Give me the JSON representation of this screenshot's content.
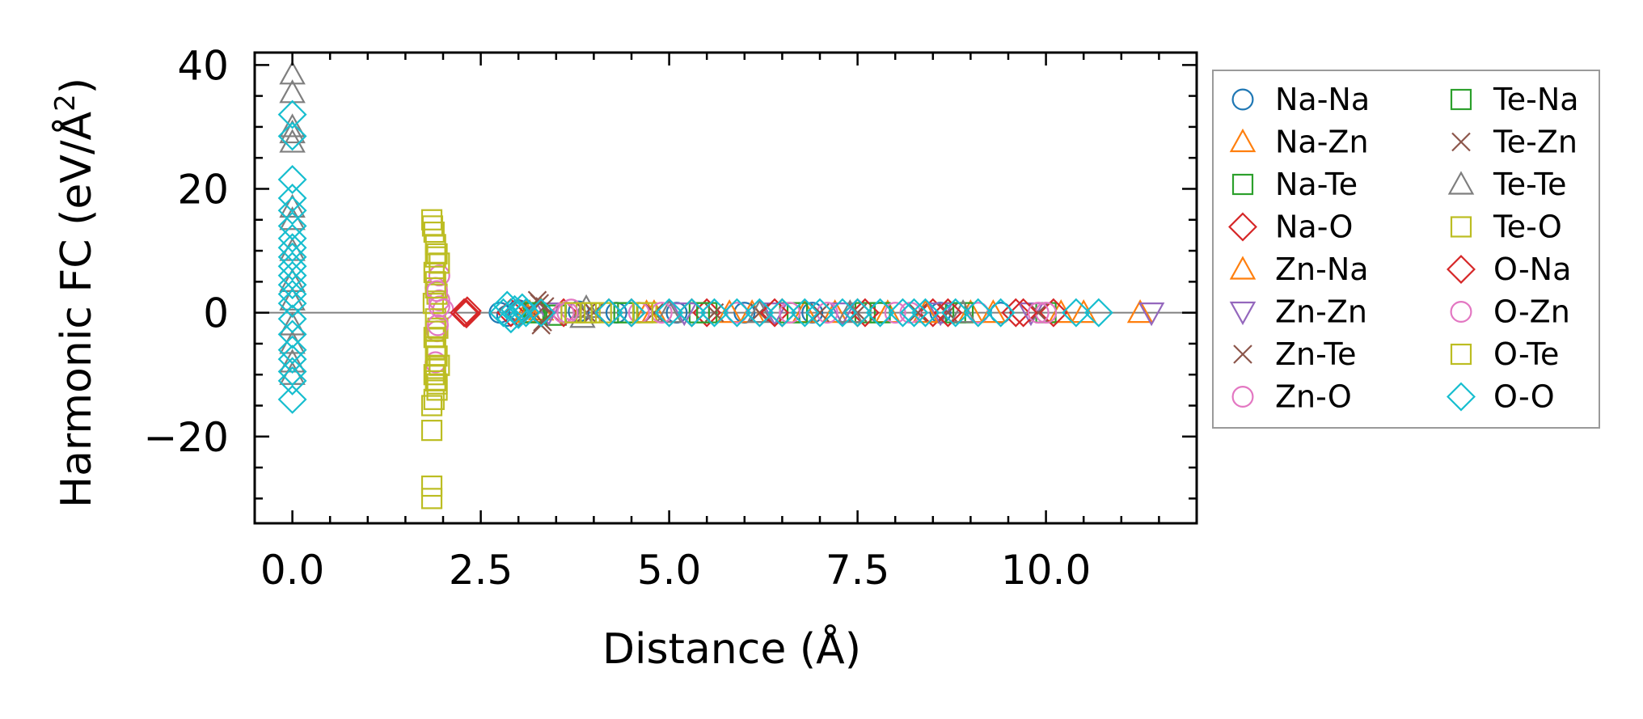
{
  "chart_data": {
    "type": "scatter",
    "title": "",
    "xlabel": "Distance (Å)",
    "ylabel_main": "Harmonic FC (eV/Å",
    "ylabel_sup": "2",
    "ylabel_close": ")",
    "xlim": [
      -0.5,
      12.0
    ],
    "ylim": [
      -34,
      42
    ],
    "xticks": [
      0.0,
      2.5,
      5.0,
      7.5,
      10.0
    ],
    "xtick_labels": [
      "0.0",
      "2.5",
      "5.0",
      "7.5",
      "10.0"
    ],
    "yticks": [
      -20,
      0,
      20,
      40
    ],
    "ytick_labels": [
      "−20",
      "0",
      "20",
      "40"
    ],
    "zero_line": 0,
    "legend": {
      "placement": "outside-right",
      "columns": 2
    },
    "series": [
      {
        "name": "Na-Na",
        "marker": "circle",
        "color": "#1f77b4",
        "points": [
          [
            2.75,
            0
          ],
          [
            2.85,
            -0.5
          ],
          [
            3.0,
            0.4
          ],
          [
            3.3,
            0
          ],
          [
            3.8,
            0.2
          ],
          [
            4.3,
            0
          ],
          [
            5.1,
            0
          ],
          [
            6.0,
            0
          ],
          [
            6.9,
            0
          ],
          [
            7.8,
            0
          ],
          [
            8.6,
            0
          ],
          [
            9.4,
            0
          ]
        ]
      },
      {
        "name": "Na-Zn",
        "marker": "triangle-up",
        "color": "#ff7f0e",
        "points": [
          [
            3.1,
            0
          ],
          [
            3.3,
            0.4
          ],
          [
            4.7,
            0
          ],
          [
            5.8,
            0
          ],
          [
            6.8,
            0
          ],
          [
            7.9,
            0
          ],
          [
            9.0,
            0
          ],
          [
            10.2,
            0
          ],
          [
            11.25,
            0
          ]
        ]
      },
      {
        "name": "Na-Te",
        "marker": "square",
        "color": "#2ca02c",
        "points": [
          [
            3.2,
            0
          ],
          [
            3.5,
            -0.4
          ],
          [
            4.4,
            0
          ],
          [
            5.4,
            0
          ],
          [
            6.6,
            0
          ],
          [
            7.6,
            0
          ],
          [
            8.8,
            0
          ],
          [
            10.0,
            0
          ]
        ]
      },
      {
        "name": "Na-O",
        "marker": "diamond",
        "color": "#d62728",
        "points": [
          [
            2.3,
            0
          ],
          [
            2.32,
            0.3
          ],
          [
            2.9,
            0
          ],
          [
            3.6,
            0
          ],
          [
            4.5,
            0
          ],
          [
            5.5,
            0
          ],
          [
            6.5,
            0
          ],
          [
            7.6,
            0
          ],
          [
            8.5,
            0
          ],
          [
            9.6,
            0
          ],
          [
            10.1,
            0
          ]
        ]
      },
      {
        "name": "Zn-Na",
        "marker": "triangle-up",
        "color": "#ff7f0e",
        "points": [
          [
            3.15,
            0
          ],
          [
            4.8,
            0
          ],
          [
            6.1,
            0
          ],
          [
            7.2,
            0
          ],
          [
            8.4,
            0
          ],
          [
            9.3,
            0
          ],
          [
            10.5,
            0
          ]
        ]
      },
      {
        "name": "Zn-Zn",
        "marker": "triangle-down",
        "color": "#9467bd",
        "points": [
          [
            3.4,
            0
          ],
          [
            5.2,
            0
          ],
          [
            6.4,
            0
          ],
          [
            7.3,
            0
          ],
          [
            8.6,
            0
          ],
          [
            9.8,
            0
          ],
          [
            11.4,
            0
          ]
        ]
      },
      {
        "name": "Zn-Te",
        "marker": "x",
        "color": "#8c564b",
        "points": [
          [
            3.25,
            2.0
          ],
          [
            3.3,
            -2.0
          ],
          [
            3.35,
            1.0
          ],
          [
            3.9,
            0
          ],
          [
            4.8,
            0
          ],
          [
            6.2,
            0
          ],
          [
            7.5,
            0
          ],
          [
            8.7,
            0
          ],
          [
            9.9,
            0
          ]
        ]
      },
      {
        "name": "Zn-O",
        "marker": "circle",
        "color": "#e377c2",
        "points": [
          [
            1.9,
            4.0
          ],
          [
            1.92,
            -3.0
          ],
          [
            1.95,
            2.0
          ],
          [
            1.95,
            6.0
          ],
          [
            1.9,
            -8.0
          ],
          [
            2.0,
            0.5
          ],
          [
            3.6,
            0
          ],
          [
            3.7,
            0.5
          ],
          [
            4.6,
            0
          ],
          [
            5.9,
            0
          ],
          [
            7.1,
            0
          ],
          [
            8.2,
            0
          ],
          [
            9.1,
            0
          ],
          [
            10.0,
            0
          ]
        ]
      },
      {
        "name": "Te-Na",
        "marker": "square",
        "color": "#2ca02c",
        "points": [
          [
            3.22,
            0
          ],
          [
            4.45,
            0
          ],
          [
            5.5,
            0
          ],
          [
            6.7,
            0
          ],
          [
            7.8,
            0
          ],
          [
            8.9,
            0
          ]
        ]
      },
      {
        "name": "Te-Zn",
        "marker": "x",
        "color": "#8c564b",
        "points": [
          [
            3.28,
            1.5
          ],
          [
            3.32,
            -1.5
          ],
          [
            4.0,
            0
          ],
          [
            5.6,
            0
          ],
          [
            7.0,
            0
          ],
          [
            8.3,
            0
          ]
        ]
      },
      {
        "name": "Te-Te",
        "marker": "triangle-up",
        "color": "#7f7f7f",
        "points": [
          [
            0,
            38.5
          ],
          [
            0,
            35.5
          ],
          [
            0,
            30.0
          ],
          [
            0,
            29.0
          ],
          [
            0,
            27.5
          ],
          [
            0,
            17.0
          ],
          [
            0,
            15.0
          ],
          [
            0,
            10.0
          ],
          [
            0,
            5.0
          ],
          [
            0,
            2.0
          ],
          [
            0,
            -2.0
          ],
          [
            0,
            -5.0
          ],
          [
            0,
            -8.0
          ],
          [
            0,
            -10.0
          ],
          [
            3.85,
            -0.8
          ],
          [
            3.9,
            0.8
          ],
          [
            5.0,
            0
          ],
          [
            6.2,
            0
          ],
          [
            7.4,
            0
          ],
          [
            8.9,
            0
          ]
        ]
      },
      {
        "name": "Te-O",
        "marker": "square",
        "color": "#bcbd22",
        "points": [
          [
            1.85,
            15.0
          ],
          [
            1.88,
            13.0
          ],
          [
            1.9,
            11.0
          ],
          [
            1.92,
            9.5
          ],
          [
            1.95,
            8.0
          ],
          [
            1.88,
            6.5
          ],
          [
            1.9,
            5.0
          ],
          [
            1.92,
            3.0
          ],
          [
            1.87,
            1.5
          ],
          [
            1.9,
            -1.0
          ],
          [
            1.93,
            -2.5
          ],
          [
            1.88,
            -4.0
          ],
          [
            1.9,
            -5.5
          ],
          [
            1.92,
            -7.0
          ],
          [
            1.95,
            -8.5
          ],
          [
            1.88,
            -10.0
          ],
          [
            1.9,
            -11.0
          ],
          [
            1.92,
            -12.5
          ],
          [
            1.85,
            -15.0
          ],
          [
            1.85,
            -19.0
          ],
          [
            1.85,
            -28.0
          ],
          [
            1.85,
            -30.0
          ],
          [
            3.7,
            0
          ],
          [
            3.9,
            0
          ],
          [
            4.1,
            0
          ],
          [
            4.7,
            0
          ]
        ]
      },
      {
        "name": "O-Na",
        "marker": "diamond",
        "color": "#d62728",
        "points": [
          [
            2.28,
            0
          ],
          [
            2.31,
            -0.2
          ],
          [
            3.0,
            0
          ],
          [
            4.2,
            0
          ],
          [
            5.3,
            0
          ],
          [
            6.4,
            0
          ],
          [
            7.5,
            0
          ],
          [
            8.7,
            0
          ],
          [
            9.7,
            0
          ]
        ]
      },
      {
        "name": "O-Zn",
        "marker": "circle",
        "color": "#e377c2",
        "points": [
          [
            1.92,
            3.5
          ],
          [
            1.93,
            -2.0
          ],
          [
            1.95,
            1.0
          ],
          [
            3.65,
            0
          ],
          [
            4.9,
            0
          ],
          [
            6.6,
            0
          ],
          [
            8.0,
            0
          ],
          [
            9.9,
            0
          ]
        ]
      },
      {
        "name": "O-Te",
        "marker": "square",
        "color": "#bcbd22",
        "points": [
          [
            1.86,
            14.0
          ],
          [
            1.9,
            9.0
          ],
          [
            1.9,
            4.0
          ],
          [
            1.9,
            -3.0
          ],
          [
            1.9,
            -6.0
          ],
          [
            1.9,
            -9.0
          ],
          [
            1.92,
            -11.5
          ],
          [
            1.88,
            -14.0
          ],
          [
            3.75,
            0
          ],
          [
            3.95,
            0
          ],
          [
            4.65,
            0
          ]
        ]
      },
      {
        "name": "O-O",
        "marker": "diamond",
        "color": "#17becf",
        "points": [
          [
            0,
            32.0
          ],
          [
            0,
            28.5
          ],
          [
            0,
            21.5
          ],
          [
            0,
            18.5
          ],
          [
            0,
            16.5
          ],
          [
            0,
            14.0
          ],
          [
            0,
            12.0
          ],
          [
            0,
            10.5
          ],
          [
            0,
            9.0
          ],
          [
            0,
            7.5
          ],
          [
            0,
            6.0
          ],
          [
            0,
            4.5
          ],
          [
            0,
            3.0
          ],
          [
            0,
            1.5
          ],
          [
            0,
            -1.0
          ],
          [
            0,
            -3.5
          ],
          [
            0,
            -6.0
          ],
          [
            0,
            -7.5
          ],
          [
            0,
            -9.5
          ],
          [
            0,
            -11.0
          ],
          [
            0,
            -14.0
          ],
          [
            2.8,
            0
          ],
          [
            2.85,
            1.2
          ],
          [
            2.9,
            -1.0
          ],
          [
            2.95,
            0.5
          ],
          [
            3.0,
            -0.3
          ],
          [
            3.05,
            0.8
          ],
          [
            3.1,
            0
          ],
          [
            3.3,
            0
          ],
          [
            4.2,
            0
          ],
          [
            4.5,
            0
          ],
          [
            5.0,
            0
          ],
          [
            5.3,
            0
          ],
          [
            5.6,
            0
          ],
          [
            5.9,
            0
          ],
          [
            6.2,
            0
          ],
          [
            6.5,
            0
          ],
          [
            6.8,
            0
          ],
          [
            7.0,
            0
          ],
          [
            7.3,
            0
          ],
          [
            7.5,
            0
          ],
          [
            7.8,
            0
          ],
          [
            8.1,
            0
          ],
          [
            8.25,
            0
          ],
          [
            8.4,
            0
          ],
          [
            8.8,
            0
          ],
          [
            9.1,
            0
          ],
          [
            9.4,
            0
          ],
          [
            10.4,
            0
          ],
          [
            10.7,
            0
          ]
        ]
      }
    ]
  }
}
